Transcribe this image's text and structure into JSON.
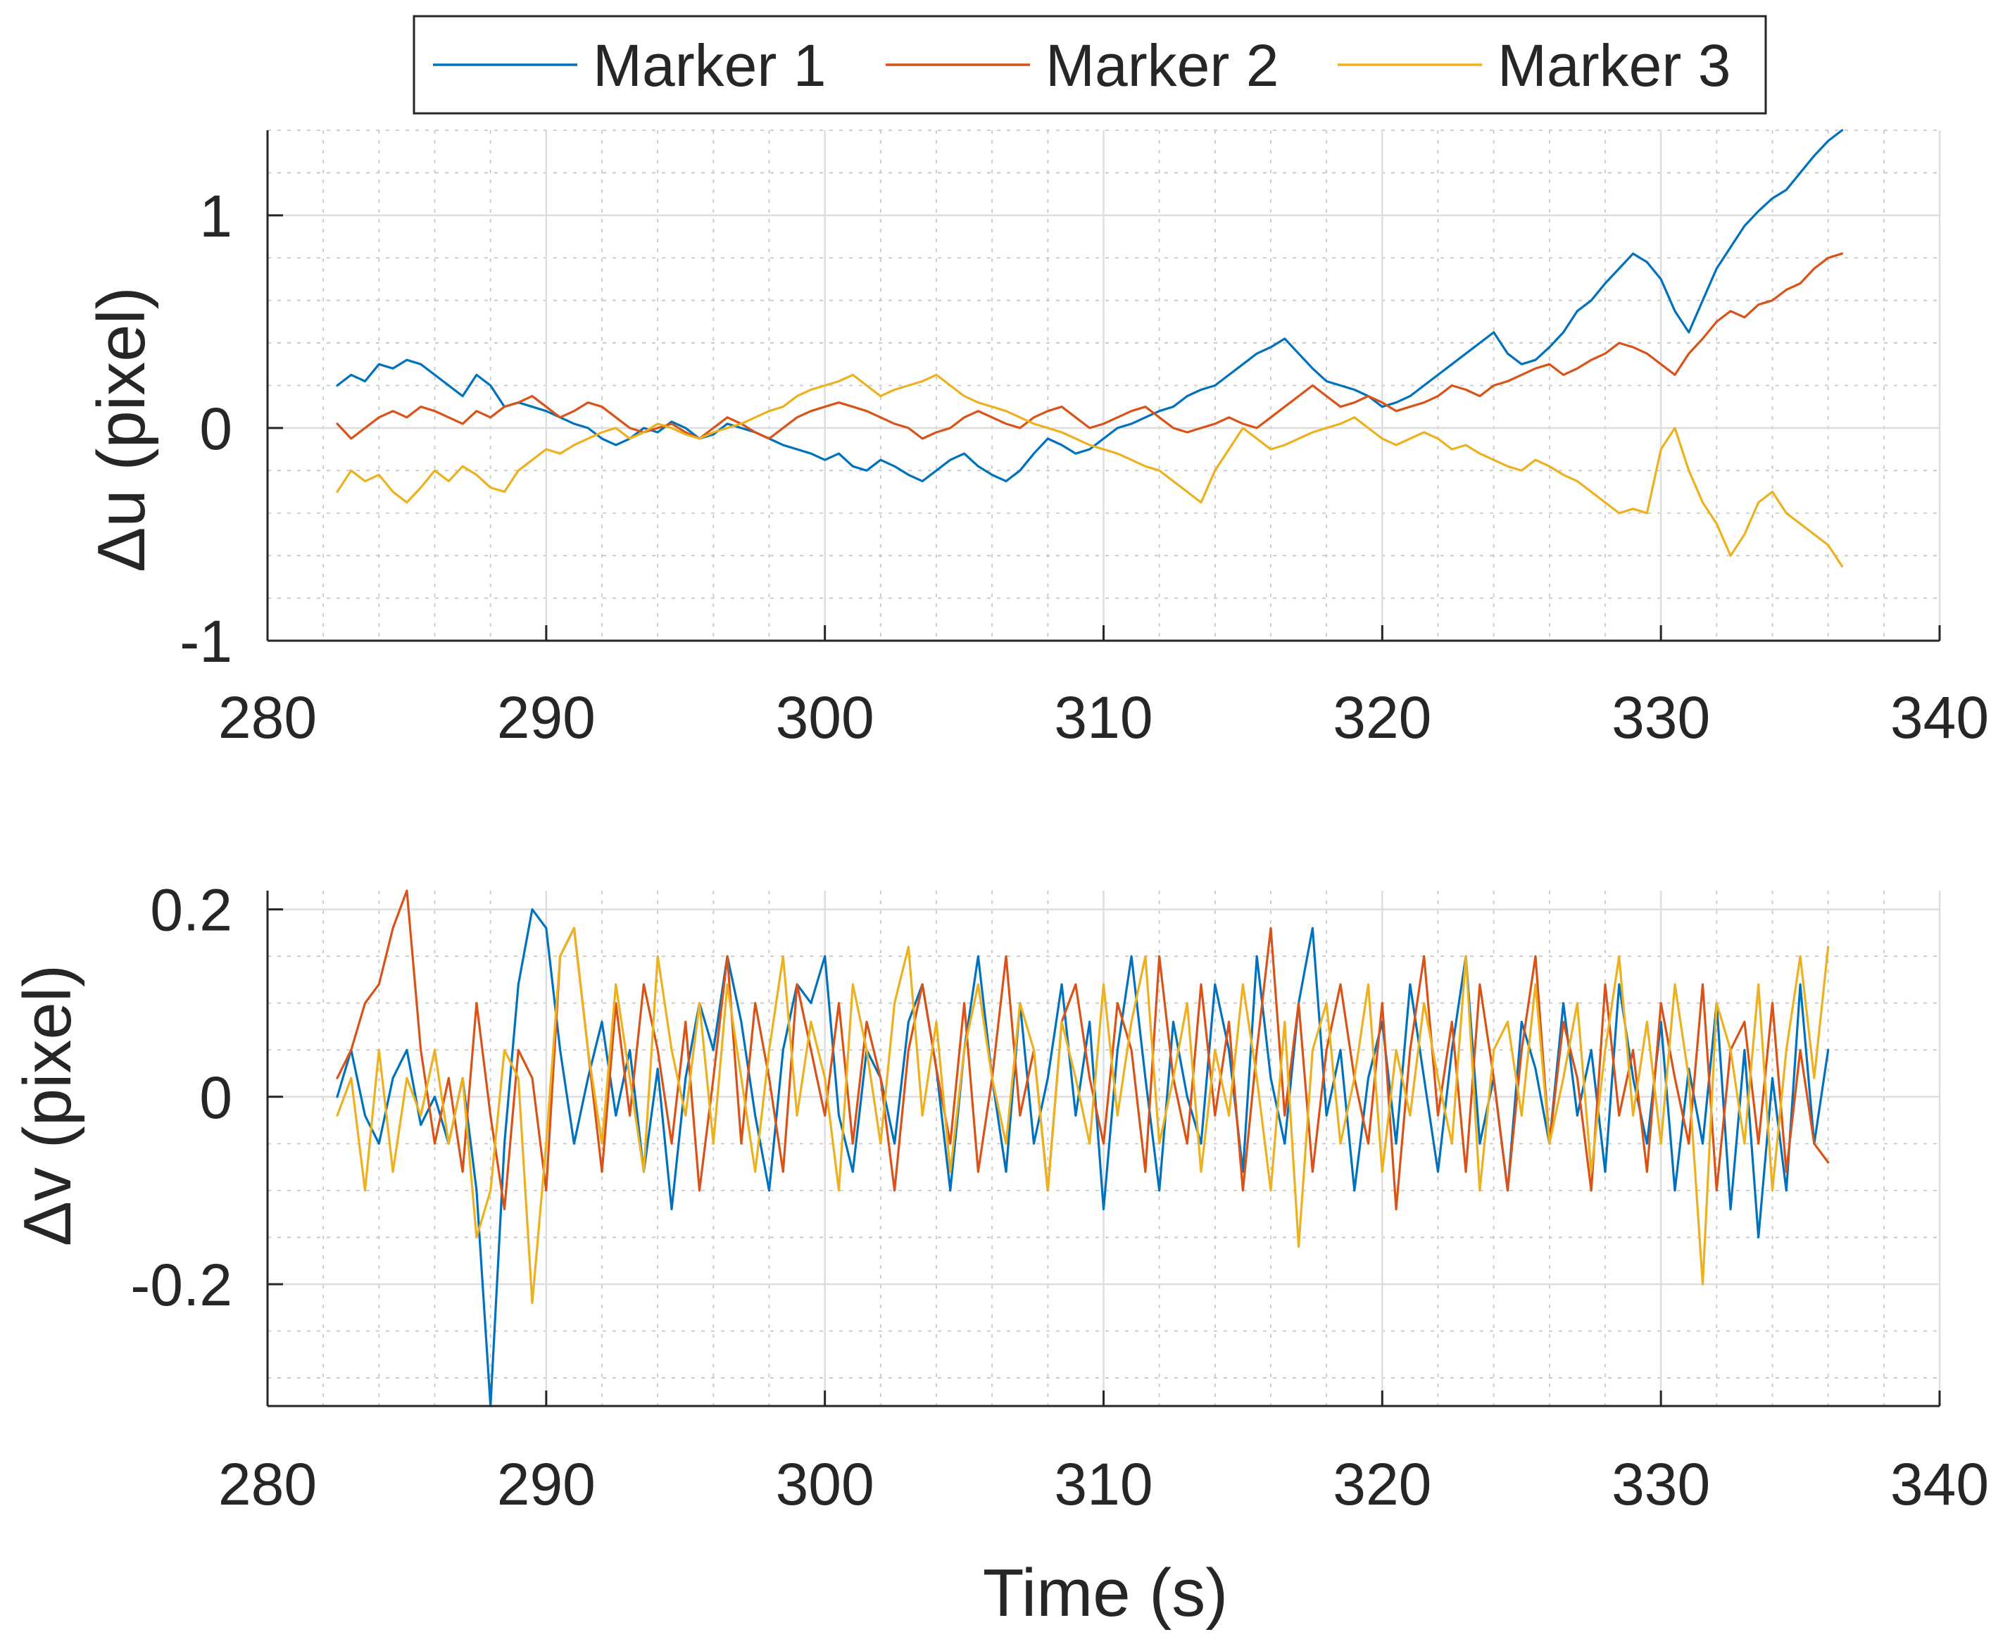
{
  "legend": {
    "position": "top-center",
    "entries": [
      "Marker 1",
      "Marker 2",
      "Marker 3"
    ]
  },
  "colors": {
    "marker_1": "#0072BD",
    "marker_2": "#D95319",
    "marker_3": "#EDB120"
  },
  "chart_data": [
    {
      "type": "line",
      "title": "",
      "xlabel": "",
      "ylabel": "Δu (pixel)",
      "xlim": [
        280,
        340
      ],
      "ylim": [
        -1,
        1.4
      ],
      "x_ticks": [
        280,
        290,
        300,
        310,
        320,
        330,
        340
      ],
      "x_tick_labels": [
        "280",
        "290",
        "300",
        "310",
        "320",
        "330",
        "340"
      ],
      "y_ticks": [
        -1,
        0,
        1
      ],
      "y_tick_labels": [
        "-1",
        "0",
        "1"
      ],
      "grid": true,
      "minor_grid": true,
      "x_start": 282.5,
      "x_step": 0.5,
      "series": [
        {
          "name": "Marker 1",
          "values": [
            0.2,
            0.25,
            0.22,
            0.3,
            0.28,
            0.32,
            0.3,
            0.25,
            0.2,
            0.15,
            0.25,
            0.2,
            0.1,
            0.12,
            0.1,
            0.08,
            0.05,
            0.02,
            0.0,
            -0.05,
            -0.08,
            -0.05,
            0.0,
            -0.02,
            0.03,
            0.0,
            -0.05,
            -0.03,
            0.02,
            0.0,
            -0.02,
            -0.05,
            -0.08,
            -0.1,
            -0.12,
            -0.15,
            -0.12,
            -0.18,
            -0.2,
            -0.15,
            -0.18,
            -0.22,
            -0.25,
            -0.2,
            -0.15,
            -0.12,
            -0.18,
            -0.22,
            -0.25,
            -0.2,
            -0.12,
            -0.05,
            -0.08,
            -0.12,
            -0.1,
            -0.05,
            0.0,
            0.02,
            0.05,
            0.08,
            0.1,
            0.15,
            0.18,
            0.2,
            0.25,
            0.3,
            0.35,
            0.38,
            0.42,
            0.35,
            0.28,
            0.22,
            0.2,
            0.18,
            0.15,
            0.1,
            0.12,
            0.15,
            0.2,
            0.25,
            0.3,
            0.35,
            0.4,
            0.45,
            0.35,
            0.3,
            0.32,
            0.38,
            0.45,
            0.55,
            0.6,
            0.68,
            0.75,
            0.82,
            0.78,
            0.7,
            0.55,
            0.45,
            0.6,
            0.75,
            0.85,
            0.95,
            1.02,
            1.08,
            1.12,
            1.2,
            1.28,
            1.35,
            1.4
          ]
        },
        {
          "name": "Marker 2",
          "values": [
            0.02,
            -0.05,
            0.0,
            0.05,
            0.08,
            0.05,
            0.1,
            0.08,
            0.05,
            0.02,
            0.08,
            0.05,
            0.1,
            0.12,
            0.15,
            0.1,
            0.05,
            0.08,
            0.12,
            0.1,
            0.05,
            0.0,
            -0.02,
            0.0,
            0.02,
            -0.02,
            -0.05,
            0.0,
            0.05,
            0.02,
            -0.02,
            -0.05,
            0.0,
            0.05,
            0.08,
            0.1,
            0.12,
            0.1,
            0.08,
            0.05,
            0.02,
            0.0,
            -0.05,
            -0.02,
            0.0,
            0.05,
            0.08,
            0.05,
            0.02,
            0.0,
            0.05,
            0.08,
            0.1,
            0.05,
            0.0,
            0.02,
            0.05,
            0.08,
            0.1,
            0.05,
            0.0,
            -0.02,
            0.0,
            0.02,
            0.05,
            0.02,
            0.0,
            0.05,
            0.1,
            0.15,
            0.2,
            0.15,
            0.1,
            0.12,
            0.15,
            0.12,
            0.08,
            0.1,
            0.12,
            0.15,
            0.2,
            0.18,
            0.15,
            0.2,
            0.22,
            0.25,
            0.28,
            0.3,
            0.25,
            0.28,
            0.32,
            0.35,
            0.4,
            0.38,
            0.35,
            0.3,
            0.25,
            0.35,
            0.42,
            0.5,
            0.55,
            0.52,
            0.58,
            0.6,
            0.65,
            0.68,
            0.75,
            0.8,
            0.82
          ]
        },
        {
          "name": "Marker 3",
          "values": [
            -0.3,
            -0.2,
            -0.25,
            -0.22,
            -0.3,
            -0.35,
            -0.28,
            -0.2,
            -0.25,
            -0.18,
            -0.22,
            -0.28,
            -0.3,
            -0.2,
            -0.15,
            -0.1,
            -0.12,
            -0.08,
            -0.05,
            -0.02,
            0.0,
            -0.05,
            -0.02,
            0.02,
            0.0,
            -0.03,
            -0.05,
            -0.02,
            0.0,
            0.02,
            0.05,
            0.08,
            0.1,
            0.15,
            0.18,
            0.2,
            0.22,
            0.25,
            0.2,
            0.15,
            0.18,
            0.2,
            0.22,
            0.25,
            0.2,
            0.15,
            0.12,
            0.1,
            0.08,
            0.05,
            0.02,
            0.0,
            -0.02,
            -0.05,
            -0.08,
            -0.1,
            -0.12,
            -0.15,
            -0.18,
            -0.2,
            -0.25,
            -0.3,
            -0.35,
            -0.2,
            -0.1,
            0.0,
            -0.05,
            -0.1,
            -0.08,
            -0.05,
            -0.02,
            0.0,
            0.02,
            0.05,
            0.0,
            -0.05,
            -0.08,
            -0.05,
            -0.02,
            -0.05,
            -0.1,
            -0.08,
            -0.12,
            -0.15,
            -0.18,
            -0.2,
            -0.15,
            -0.18,
            -0.22,
            -0.25,
            -0.3,
            -0.35,
            -0.4,
            -0.38,
            -0.4,
            -0.1,
            0.0,
            -0.2,
            -0.35,
            -0.45,
            -0.6,
            -0.5,
            -0.35,
            -0.3,
            -0.4,
            -0.45,
            -0.5,
            -0.55,
            -0.65
          ]
        }
      ]
    },
    {
      "type": "line",
      "title": "",
      "xlabel": "Time (s)",
      "ylabel": "Δv (pixel)",
      "xlim": [
        280,
        340
      ],
      "ylim": [
        -0.33,
        0.22
      ],
      "x_ticks": [
        280,
        290,
        300,
        310,
        320,
        330,
        340
      ],
      "x_tick_labels": [
        "280",
        "290",
        "300",
        "310",
        "320",
        "330",
        "340"
      ],
      "y_ticks": [
        -0.2,
        0,
        0.2
      ],
      "y_tick_labels": [
        "-0.2",
        "0",
        "0.2"
      ],
      "grid": true,
      "minor_grid": true,
      "x_start": 282.5,
      "x_step": 0.5,
      "series": [
        {
          "name": "Marker 1",
          "values": [
            0.0,
            0.05,
            -0.02,
            -0.05,
            0.02,
            0.05,
            -0.03,
            0.0,
            -0.05,
            0.02,
            -0.1,
            -0.33,
            -0.05,
            0.12,
            0.2,
            0.18,
            0.05,
            -0.05,
            0.02,
            0.08,
            -0.02,
            0.05,
            -0.08,
            0.03,
            -0.12,
            0.02,
            0.1,
            0.05,
            0.15,
            0.08,
            -0.02,
            -0.1,
            0.05,
            0.12,
            0.1,
            0.15,
            -0.02,
            -0.08,
            0.05,
            0.02,
            -0.05,
            0.08,
            0.12,
            0.03,
            -0.1,
            0.05,
            0.15,
            0.02,
            -0.08,
            0.1,
            -0.05,
            0.02,
            0.12,
            -0.02,
            0.08,
            -0.12,
            0.05,
            0.15,
            0.02,
            -0.1,
            0.08,
            0.0,
            -0.05,
            0.12,
            0.05,
            -0.08,
            0.15,
            0.02,
            -0.05,
            0.1,
            0.18,
            -0.02,
            0.05,
            -0.1,
            0.02,
            0.08,
            -0.05,
            0.12,
            0.02,
            -0.08,
            0.05,
            0.15,
            -0.05,
            0.02,
            -0.1,
            0.08,
            0.03,
            -0.05,
            0.1,
            -0.02,
            0.05,
            -0.08,
            0.12,
            0.02,
            -0.05,
            0.08,
            -0.1,
            0.03,
            -0.05,
            0.1,
            -0.12,
            0.05,
            -0.15,
            0.02,
            -0.1,
            0.12,
            -0.05,
            0.05
          ]
        },
        {
          "name": "Marker 2",
          "values": [
            0.02,
            0.05,
            0.1,
            0.12,
            0.18,
            0.22,
            0.05,
            -0.05,
            0.02,
            -0.08,
            0.1,
            -0.02,
            -0.12,
            0.05,
            0.02,
            -0.1,
            0.15,
            0.18,
            0.05,
            -0.08,
            0.1,
            -0.02,
            0.12,
            0.05,
            -0.05,
            0.08,
            -0.1,
            0.02,
            0.15,
            -0.05,
            0.1,
            0.02,
            -0.08,
            0.12,
            0.05,
            -0.02,
            0.1,
            -0.05,
            0.08,
            0.02,
            -0.1,
            0.05,
            0.12,
            0.03,
            -0.05,
            0.1,
            -0.08,
            0.02,
            0.15,
            -0.02,
            0.05,
            -0.1,
            0.08,
            0.12,
            0.02,
            -0.05,
            0.1,
            0.05,
            -0.08,
            0.15,
            0.02,
            -0.05,
            0.12,
            -0.02,
            0.08,
            -0.1,
            0.05,
            0.18,
            -0.02,
            0.1,
            -0.08,
            0.05,
            0.12,
            0.02,
            -0.05,
            0.1,
            -0.12,
            0.05,
            0.15,
            -0.02,
            0.08,
            -0.08,
            0.12,
            0.02,
            -0.1,
            0.05,
            0.15,
            -0.05,
            0.08,
            0.02,
            -0.1,
            0.12,
            -0.02,
            0.05,
            -0.08,
            0.1,
            0.02,
            -0.05,
            0.12,
            -0.1,
            0.05,
            0.08,
            -0.05,
            0.1,
            -0.08,
            0.05,
            -0.05,
            -0.07
          ]
        },
        {
          "name": "Marker 3",
          "values": [
            -0.02,
            0.02,
            -0.1,
            0.05,
            -0.08,
            0.02,
            -0.02,
            0.05,
            -0.05,
            0.02,
            -0.15,
            -0.1,
            0.05,
            0.02,
            -0.22,
            -0.05,
            0.15,
            0.18,
            0.05,
            -0.05,
            0.12,
            0.02,
            -0.08,
            0.15,
            0.05,
            -0.02,
            0.1,
            -0.05,
            0.12,
            0.02,
            -0.08,
            0.05,
            0.15,
            -0.02,
            0.08,
            0.02,
            -0.1,
            0.12,
            0.05,
            -0.05,
            0.1,
            0.16,
            -0.02,
            0.08,
            -0.08,
            0.05,
            0.12,
            0.02,
            -0.05,
            0.1,
            0.05,
            -0.1,
            0.08,
            0.02,
            -0.05,
            0.12,
            -0.02,
            0.08,
            0.15,
            -0.05,
            0.02,
            0.1,
            -0.08,
            0.05,
            -0.02,
            0.12,
            0.02,
            -0.1,
            0.08,
            -0.16,
            0.05,
            0.1,
            -0.05,
            0.02,
            0.12,
            -0.08,
            0.05,
            -0.02,
            0.1,
            0.02,
            -0.05,
            0.15,
            -0.1,
            0.05,
            0.08,
            -0.02,
            0.12,
            -0.05,
            0.02,
            0.1,
            -0.08,
            0.05,
            0.15,
            -0.02,
            0.08,
            -0.05,
            0.12,
            0.02,
            -0.2,
            0.1,
            0.05,
            -0.05,
            0.12,
            -0.1,
            0.05,
            0.15,
            0.02,
            0.16
          ]
        }
      ]
    }
  ]
}
